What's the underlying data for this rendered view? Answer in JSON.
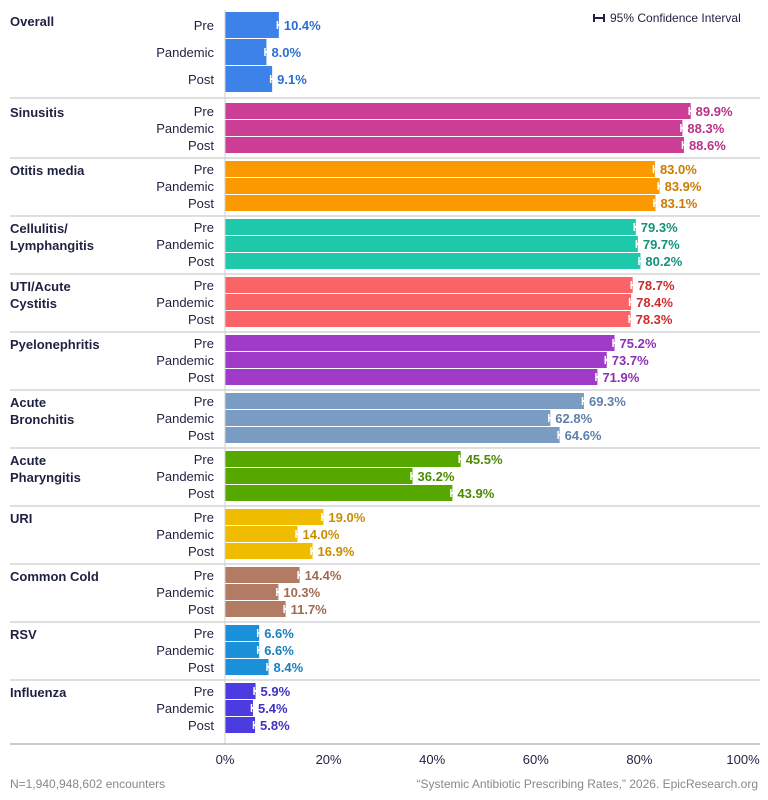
{
  "chart_data": {
    "type": "bar",
    "orientation": "horizontal",
    "groups": [
      {
        "name": "Overall",
        "color": "#3d82e8",
        "label_color": "#2a6fd0",
        "values": [
          10.4,
          8.0,
          9.1
        ],
        "labels": [
          "10.4%",
          "8.0%",
          "9.1%"
        ]
      },
      {
        "name": "Sinusitis",
        "color": "#cc3d96",
        "label_color": "#b83287",
        "values": [
          89.9,
          88.3,
          88.6
        ],
        "labels": [
          "89.9%",
          "88.3%",
          "88.6%"
        ]
      },
      {
        "name": "Otitis media",
        "color": "#fb9900",
        "label_color": "#cc7a00",
        "values": [
          83.0,
          83.9,
          83.1
        ],
        "labels": [
          "83.0%",
          "83.9%",
          "83.1%"
        ]
      },
      {
        "name": "Cellulitis/\nLymphangitis",
        "color": "#1ec8aa",
        "label_color": "#14917c",
        "values": [
          79.3,
          79.7,
          80.2
        ],
        "labels": [
          "79.3%",
          "79.7%",
          "80.2%"
        ]
      },
      {
        "name": "UTI/Acute\nCystitis",
        "color": "#fb6466",
        "label_color": "#cc2b2d",
        "values": [
          78.7,
          78.4,
          78.3
        ],
        "labels": [
          "78.7%",
          "78.4%",
          "78.3%"
        ]
      },
      {
        "name": "Pyelonephritis",
        "color": "#a03ac8",
        "label_color": "#8e2fb5",
        "values": [
          75.2,
          73.7,
          71.9
        ],
        "labels": [
          "75.2%",
          "73.7%",
          "71.9%"
        ]
      },
      {
        "name": "Acute\nBronchitis",
        "color": "#7b9cc2",
        "label_color": "#5d80a8",
        "values": [
          69.3,
          62.8,
          64.6
        ],
        "labels": [
          "69.3%",
          "62.8%",
          "64.6%"
        ]
      },
      {
        "name": "Acute\nPharyngitis",
        "color": "#56a800",
        "label_color": "#4a8c00",
        "values": [
          45.5,
          36.2,
          43.9
        ],
        "labels": [
          "45.5%",
          "36.2%",
          "43.9%"
        ]
      },
      {
        "name": "URI",
        "color": "#f0bc00",
        "label_color": "#c98e00",
        "values": [
          19.0,
          14.0,
          16.9
        ],
        "labels": [
          "19.0%",
          "14.0%",
          "16.9%"
        ]
      },
      {
        "name": "Common Cold",
        "color": "#b37a64",
        "label_color": "#a26a52",
        "values": [
          14.4,
          10.3,
          11.7
        ],
        "labels": [
          "14.4%",
          "10.3%",
          "11.7%"
        ]
      },
      {
        "name": "RSV",
        "color": "#1a90d8",
        "label_color": "#177fbf",
        "values": [
          6.6,
          6.6,
          8.4
        ],
        "labels": [
          "6.6%",
          "6.6%",
          "8.4%"
        ]
      },
      {
        "name": "Influenza",
        "color": "#4b3be0",
        "label_color": "#3f32c2",
        "values": [
          5.9,
          5.4,
          5.8
        ],
        "labels": [
          "5.9%",
          "5.4%",
          "5.8%"
        ]
      }
    ],
    "periods": [
      "Pre",
      "Pandemic",
      "Post"
    ],
    "x_ticks": [
      "0%",
      "20%",
      "40%",
      "60%",
      "80%",
      "100%"
    ],
    "xlim": [
      0,
      100
    ],
    "error_bars": "95% confidence interval",
    "legend": {
      "text": "95% Confidence Interval",
      "position": "top-right"
    },
    "grid": false
  },
  "footer": {
    "left": "N=1,940,948,602 encounters",
    "right": "“Systemic Antibiotic Prescribing Rates,” 2026. EpicResearch.org"
  }
}
